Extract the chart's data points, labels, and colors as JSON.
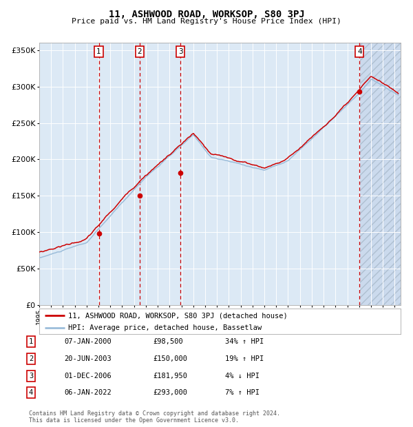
{
  "title": "11, ASHWOOD ROAD, WORKSOP, S80 3PJ",
  "subtitle": "Price paid vs. HM Land Registry's House Price Index (HPI)",
  "legend_line1": "11, ASHWOOD ROAD, WORKSOP, S80 3PJ (detached house)",
  "legend_line2": "HPI: Average price, detached house, Bassetlaw",
  "footer1": "Contains HM Land Registry data © Crown copyright and database right 2024.",
  "footer2": "This data is licensed under the Open Government Licence v3.0.",
  "transactions": [
    {
      "num": 1,
      "date": "07-JAN-2000",
      "date_x": 2000.03,
      "price": 98500,
      "price_str": "£98,500",
      "hpi_rel": "34% ↑ HPI"
    },
    {
      "num": 2,
      "date": "20-JUN-2003",
      "date_x": 2003.47,
      "price": 150000,
      "price_str": "£150,000",
      "hpi_rel": "19% ↑ HPI"
    },
    {
      "num": 3,
      "date": "01-DEC-2006",
      "date_x": 2006.92,
      "price": 181950,
      "price_str": "£181,950",
      "hpi_rel": "4% ↓ HPI"
    },
    {
      "num": 4,
      "date": "06-JAN-2022",
      "date_x": 2022.03,
      "price": 293000,
      "price_str": "£293,000",
      "hpi_rel": "7% ↑ HPI"
    }
  ],
  "xmin": 1995.0,
  "xmax": 2025.5,
  "ymin": 0,
  "ymax": 360000,
  "yticks": [
    0,
    50000,
    100000,
    150000,
    200000,
    250000,
    300000,
    350000
  ],
  "ytick_labels": [
    "£0",
    "£50K",
    "£100K",
    "£150K",
    "£200K",
    "£250K",
    "£300K",
    "£350K"
  ],
  "hpi_color": "#9cbdda",
  "price_color": "#cc0000",
  "bg_color": "#dce9f5",
  "grid_color": "#ffffff",
  "vline_color": "#cc0000",
  "box_color": "#cc0000",
  "hatch_bg": "#c8d8ec"
}
